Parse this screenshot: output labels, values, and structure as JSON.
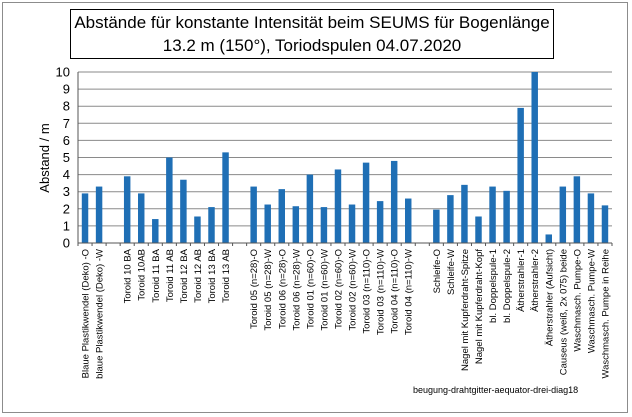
{
  "chart_data": {
    "type": "bar",
    "title": "Abstände für konstante Intensität beim SEUMS für Bogenlänge",
    "subtitle": "13.2 m (150°), Toriodspulen 04.07.2020",
    "ylabel": "Abstand / m",
    "xlabel": "",
    "ylim": [
      0,
      10
    ],
    "yticks": [
      "0",
      "1",
      "2",
      "3",
      "4",
      "5",
      "6",
      "7",
      "8",
      "9",
      "10"
    ],
    "grid": true,
    "legend": "none",
    "bar_color": "#1f6fb5",
    "categories": [
      "Blaue Plastikwendel (Deko) -O",
      "blaue Plastikwendel (Deko) -W",
      "",
      "Toroid 10 BA",
      "Toroid 10AB",
      "Toroid 11 BA",
      "Toroid 11 AB",
      "Toroid 12 BA",
      "Toroid 12 AB",
      "Toroid 13 BA",
      "Toroid 13 AB",
      "",
      "Toroid 05 (n=28)-O",
      "Toroid 05 (n=28)-W",
      "Toroid 06 (n=28)-O",
      "Toroid 06 (n=28)-W",
      "Toroid 01 (n=60)-O",
      "Toroid 01 (n=60)-W",
      "Toroid 02 (n=60)-O",
      "Toroid 02 (n=60)-W",
      "Toroid 03 (n=110)-O",
      "Toroid 03 (n=110)-W",
      "Toroid 04 (n=110)-O",
      "Toroid 04 (n=110)-W",
      "",
      "Schleife-O",
      "Schleife-W",
      "Nagel mit Kupferdraht-Spitze",
      "Nagel mit Kupferdraht-Kopf",
      "bl. Doppelspule-1",
      "bl. Doppelspule-2",
      "Ätherstrahler-1",
      "Ätherstrahler-2",
      "Ätherstrahler (Aufsicht)",
      "Causeus (weiß, 2x 075) beide",
      "Waschmasch. Pumpe-O",
      "Waschmasch. Pumpe-W",
      "Waschmasch. Pumpe in Reihe"
    ],
    "values": [
      2.9,
      3.3,
      null,
      3.9,
      2.9,
      1.4,
      5.0,
      3.7,
      1.55,
      2.1,
      5.3,
      null,
      3.3,
      2.25,
      3.15,
      2.15,
      4.0,
      2.1,
      4.3,
      2.25,
      4.7,
      2.45,
      4.8,
      2.6,
      null,
      1.95,
      2.8,
      3.4,
      1.55,
      3.3,
      3.05,
      7.9,
      10.0,
      0.5,
      3.3,
      3.9,
      2.9,
      2.2
    ]
  },
  "source_note": "beugung-drahtgitter-aequator-drei-diag18"
}
